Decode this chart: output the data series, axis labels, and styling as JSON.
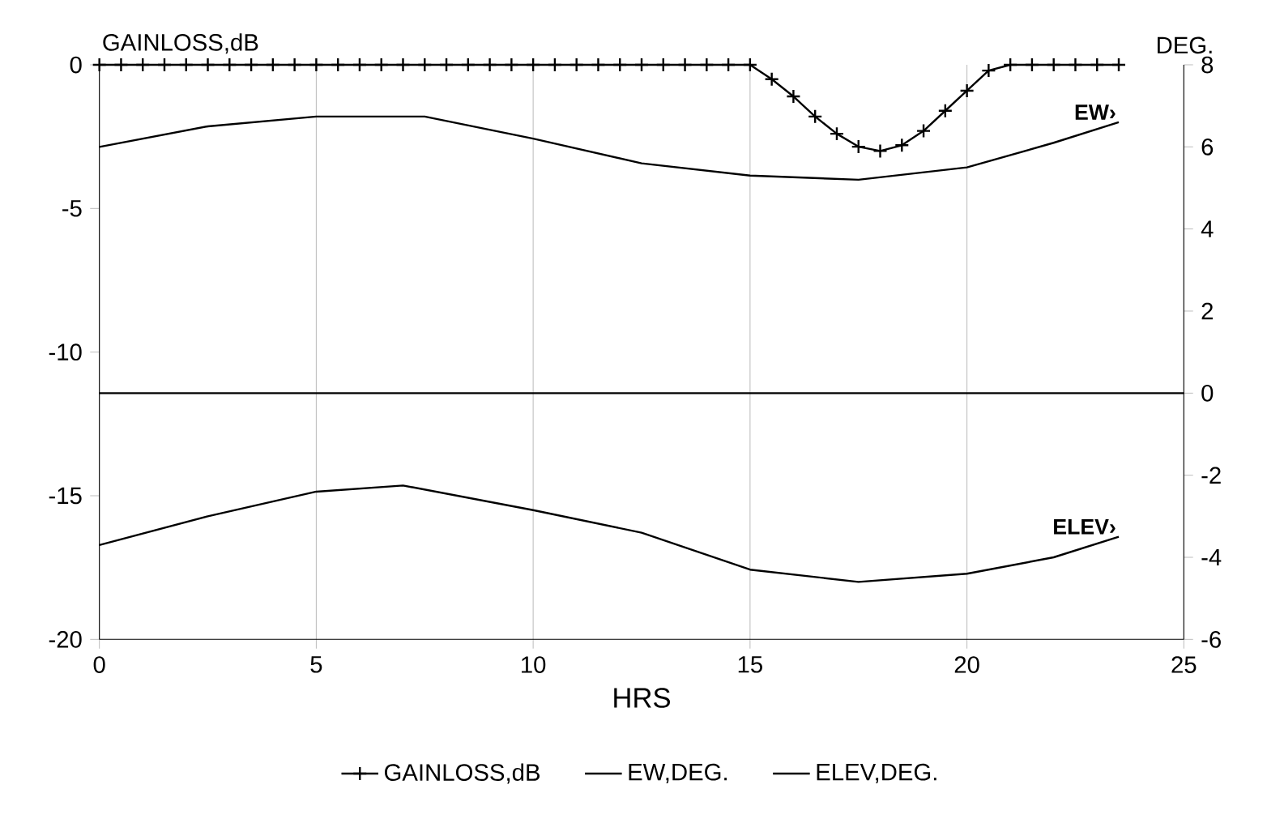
{
  "chart_data": {
    "type": "line",
    "xlabel": "HRS",
    "ylabel": "GAINLOSS,dB",
    "y2label": "DEG.",
    "xlim": [
      0,
      25
    ],
    "xticks": [
      0,
      5,
      10,
      15,
      20,
      25
    ],
    "ylim": [
      -20,
      0
    ],
    "yticks": [
      -20,
      -15,
      -10,
      -5,
      0
    ],
    "y2lim": [
      -6,
      8
    ],
    "y2ticks": [
      -6,
      -4,
      -2,
      0,
      2,
      4,
      6,
      8
    ],
    "grid": "x",
    "legend": "bottom",
    "line_style": "solid",
    "ref_lines": [
      {
        "axis": "y2",
        "value": 0
      }
    ],
    "annotations": [
      "EW›",
      "ELEV›"
    ],
    "series": [
      {
        "name": "GAINLOSS,dB",
        "color": "#000000",
        "marker": "cross",
        "axis": "y",
        "x": [
          0,
          0.5,
          1,
          1.5,
          2,
          2.5,
          3,
          3.5,
          4,
          4.5,
          5,
          5.5,
          6,
          6.5,
          7,
          7.5,
          8,
          8.5,
          9,
          9.5,
          10,
          10.5,
          11,
          11.5,
          12,
          12.5,
          13,
          13.5,
          14,
          14.5,
          15,
          15.5,
          16,
          16.5,
          17,
          17.5,
          18,
          18.5,
          19,
          19.5,
          20,
          20.5,
          21,
          21.5,
          22,
          22.5,
          23,
          23.5
        ],
        "values": [
          0,
          0,
          0,
          0,
          0,
          0,
          0,
          0,
          0,
          0,
          0,
          0,
          0,
          0,
          0,
          0,
          0,
          0,
          0,
          0,
          0,
          0,
          0,
          0,
          0,
          0,
          0,
          0,
          0,
          0,
          0,
          -0.5,
          -1.1,
          -1.8,
          -2.4,
          -2.85,
          -3,
          -2.8,
          -2.3,
          -1.6,
          -0.9,
          -0.2,
          0,
          0,
          0,
          0,
          0,
          0
        ]
      },
      {
        "name": "EW,DEG.",
        "color": "#000000",
        "marker": "none",
        "axis": "y2",
        "x": [
          0,
          2.5,
          5,
          7.5,
          10,
          12.5,
          15,
          17.5,
          20,
          22,
          23.5
        ],
        "values": [
          6.0,
          6.5,
          6.74,
          6.74,
          6.2,
          5.6,
          5.3,
          5.2,
          5.5,
          6.1,
          6.6
        ]
      },
      {
        "name": "ELEV,DEG.",
        "color": "#000000",
        "marker": "none",
        "axis": "y2",
        "x": [
          0,
          2.5,
          5,
          7,
          10,
          12.5,
          15,
          17.5,
          20,
          22,
          23.5
        ],
        "values": [
          -3.7,
          -3.0,
          -2.4,
          -2.25,
          -2.85,
          -3.4,
          -4.3,
          -4.6,
          -4.4,
          -4.0,
          -3.5
        ]
      }
    ]
  }
}
